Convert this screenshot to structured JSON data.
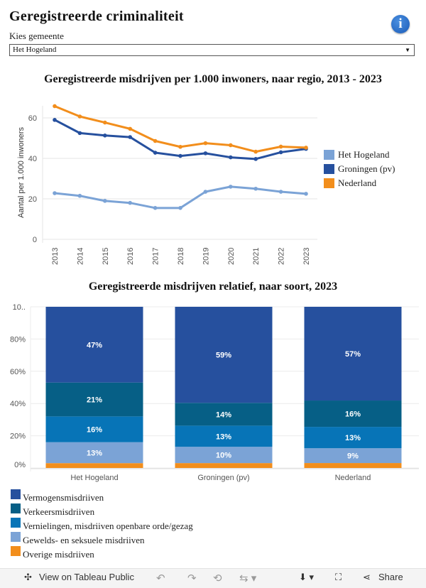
{
  "page": {
    "title": "Geregistreerde  criminaliteit",
    "info_icon": "info-icon",
    "filter_label": "Kies  gemeente",
    "filter_value": "Het  Hogeland"
  },
  "line_chart_title": "Geregistreerde  misdrijven  per  1.000  inwoners,  naar  regio,  2013  -  2023",
  "bar_chart_title": "Geregistreerde  misdrijven  relatief,  naar  soort,  2023",
  "chart_data": [
    {
      "type": "line",
      "title": "Geregistreerde  misdrijven  per  1.000  inwoners,  naar  regio,  2013  -  2023",
      "ylabel": "Aantal per 1.000 inwoners",
      "xlabel": "",
      "ylim": [
        0,
        66
      ],
      "yticks": [
        "0",
        "20",
        "40",
        "60"
      ],
      "x": [
        "2013",
        "2014",
        "2015",
        "2016",
        "2017",
        "2018",
        "2019",
        "2020",
        "2021",
        "2022",
        "2023"
      ],
      "series": [
        {
          "name": "Het  Hogeland",
          "color": "#7ba3d6",
          "values": [
            22.8,
            21.5,
            19,
            18,
            15.5,
            15.5,
            23.5,
            26,
            25,
            23.5,
            22.5
          ]
        },
        {
          "name": "Groningen  (pv)",
          "color": "#26509e",
          "values": [
            59,
            52.5,
            51.3,
            50.5,
            42.8,
            41.2,
            42.5,
            40.5,
            39.7,
            43,
            44.7
          ]
        },
        {
          "name": "Nederland",
          "color": "#f28e1c",
          "values": [
            65.8,
            60.7,
            57.7,
            54.6,
            48.6,
            45.7,
            47.5,
            46.5,
            43.3,
            45.8,
            45.3
          ]
        }
      ],
      "legend": "right"
    },
    {
      "type": "bar",
      "stacked": true,
      "title": "Geregistreerde  misdrijven  relatief,  naar  soort,  2023",
      "categories": [
        "Het Hogeland",
        "Groningen (pv)",
        "Nederland"
      ],
      "yticks": [
        "0%",
        "20%",
        "40%",
        "60%",
        "80%",
        "10.."
      ],
      "ylim": [
        0,
        100
      ],
      "series": [
        {
          "name": "Overige  misdriiven",
          "color": "#f28e1c",
          "values": [
            3,
            3,
            3
          ],
          "labels": [
            "",
            "",
            ""
          ]
        },
        {
          "name": "Gewelds-  en  seksuele  misdriiven",
          "color": "#7ba3d6",
          "values": [
            13,
            10,
            9
          ],
          "labels": [
            "13%",
            "10%",
            "9%"
          ]
        },
        {
          "name": "Vernielingen,  misdriiven  openbare  orde/gezag",
          "color": "#0774b7",
          "values": [
            16,
            13,
            13
          ],
          "labels": [
            "16%",
            "13%",
            "13%"
          ]
        },
        {
          "name": "Verkeersmisdriiven",
          "color": "#065f86",
          "values": [
            21,
            14,
            16
          ],
          "labels": [
            "21%",
            "14%",
            "16%"
          ]
        },
        {
          "name": "Vermogensmisdriiven",
          "color": "#26509e",
          "values": [
            47,
            59,
            57
          ],
          "labels": [
            "47%",
            "59%",
            "57%"
          ]
        }
      ],
      "legend": "bottom-left"
    }
  ],
  "toolbar": {
    "view_label": "View on Tableau Public",
    "share_label": "Share"
  }
}
